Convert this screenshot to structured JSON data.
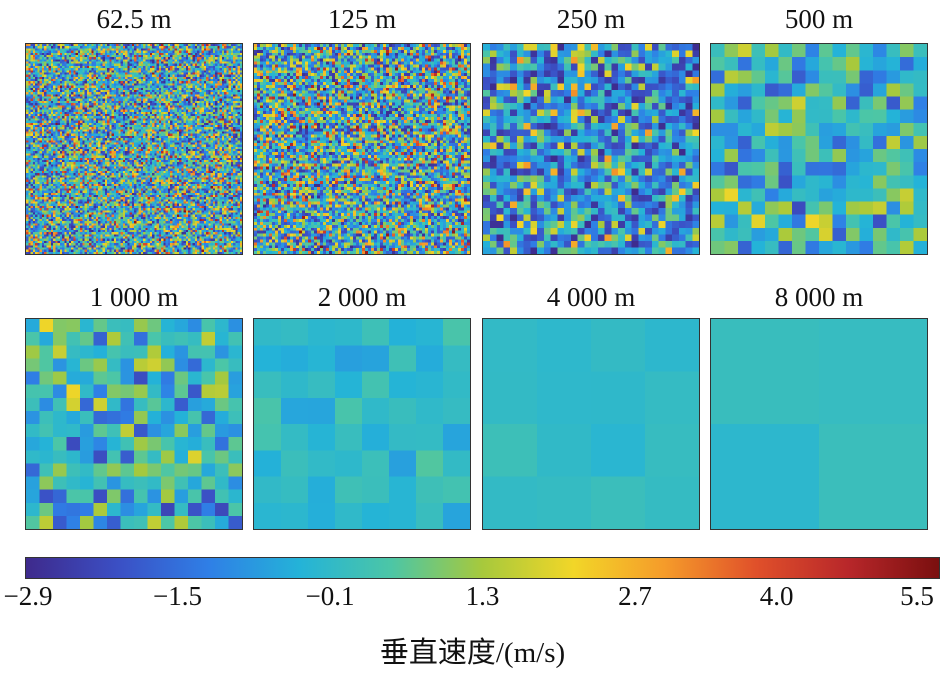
{
  "chart_data": {
    "type": "heatmap",
    "panels": [
      {
        "title": "62.5 m",
        "grid": 96
      },
      {
        "title": "125 m",
        "grid": 72
      },
      {
        "title": "250 m",
        "grid": 32
      },
      {
        "title": "500 m",
        "grid": 16
      },
      {
        "title": "1 000 m",
        "grid": 16
      },
      {
        "title": "2 000 m",
        "grid": 8
      },
      {
        "title": "4 000 m",
        "grid": 4
      },
      {
        "title": "8 000 m",
        "grid": 2
      }
    ],
    "colorbar": {
      "label": "垂直速度/(m/s)",
      "range": [
        -2.9,
        5.5
      ],
      "ticks": [
        "−2.9",
        "−1.5",
        "−0.1",
        "1.3",
        "2.7",
        "4.0",
        "5.5"
      ],
      "tick_values": [
        -2.9,
        -1.5,
        -0.1,
        1.3,
        2.7,
        4.0,
        5.5
      ],
      "colormap": [
        "#3e2a8c",
        "#3b4fc4",
        "#2f7fe6",
        "#24b3d8",
        "#4cc6a6",
        "#a7c93c",
        "#f2d628",
        "#f59b2a",
        "#e0502a",
        "#b8272a",
        "#7a0f0f"
      ]
    }
  }
}
